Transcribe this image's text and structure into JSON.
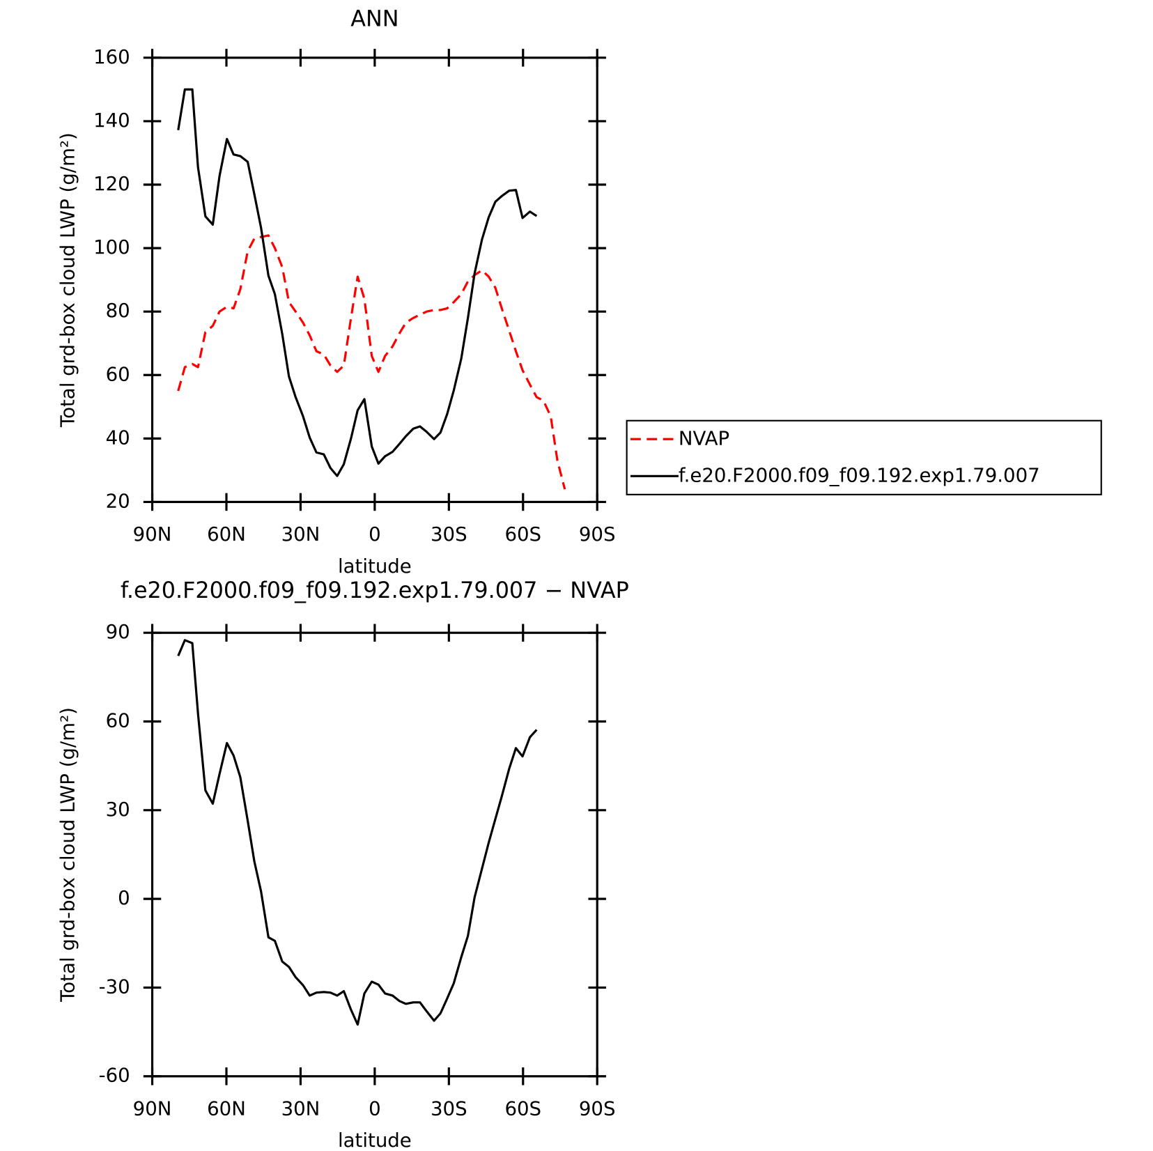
{
  "chart_data": [
    {
      "type": "line",
      "title": "ANN",
      "xlabel": "latitude",
      "ylabel": "Total grd-box cloud LWP (g/m²)",
      "x": [
        79.5,
        76.8,
        73.8,
        71.5,
        68.5,
        65.5,
        62.8,
        59.8,
        57.1,
        54.4,
        51.4,
        48.7,
        46,
        43,
        40.4,
        37.4,
        34.7,
        32,
        29,
        26.3,
        23.6,
        20.6,
        17.9,
        15.2,
        12.5,
        9.6,
        6.9,
        4.2,
        1.2,
        -1.5,
        -4.2,
        -7.2,
        -9.9,
        -12.6,
        -15.6,
        -18.3,
        -21,
        -24,
        -26.6,
        -29.3,
        -32,
        -35,
        -37.7,
        -40.4,
        -43.4,
        -46.1,
        -48.8,
        -51.4,
        -54.4,
        -57.1,
        -59.8,
        -62.8,
        -65.5,
        -68.2,
        -71.2,
        -73.9,
        -76.9
      ],
      "series": [
        {
          "name": "NVAP",
          "color": "#ff0000",
          "linestyle": "dashed",
          "values": [
            55,
            62.5,
            63.5,
            62.5,
            73.5,
            75.5,
            80,
            81.5,
            81,
            87,
            99,
            103,
            103.5,
            104,
            100,
            94,
            83,
            80,
            76.5,
            72.5,
            67.5,
            66.5,
            63,
            61,
            63,
            78,
            91,
            84,
            66,
            61,
            66,
            69,
            73,
            76.5,
            78,
            79,
            80,
            80.5,
            80.5,
            81,
            83,
            85.5,
            89.5,
            91.5,
            93,
            91,
            87.5,
            81,
            74,
            67.5,
            61.5,
            57,
            53,
            52,
            47,
            33,
            24
          ]
        },
        {
          "name": "f.e20.F2000.f09_f09.192.exp1.79.007",
          "color": "#000000",
          "linestyle": "solid",
          "values": [
            137.2,
            150,
            150,
            125.5,
            110,
            107.4,
            122.7,
            134.4,
            129.5,
            129,
            127.2,
            117,
            106.4,
            91.3,
            85.5,
            72.9,
            59.6,
            53,
            47,
            40.3,
            35.6,
            35,
            30.7,
            28.2,
            31.9,
            40,
            48.9,
            52.4,
            37.5,
            32.1,
            34.4,
            35.8,
            38.2,
            40.7,
            43.1,
            43.8,
            42.1,
            39.8,
            41.9,
            47.7,
            55.2,
            65.2,
            78,
            92,
            102.7,
            109.7,
            114.6,
            116.4,
            118.1,
            118.3,
            109.5,
            111.5,
            110.1,
            null,
            null,
            null,
            null
          ]
        }
      ],
      "xlim": [
        90,
        -90
      ],
      "xticks": [
        {
          "value": 90,
          "label": "90N"
        },
        {
          "value": 60,
          "label": "60N"
        },
        {
          "value": 30,
          "label": "30N"
        },
        0,
        {
          "value": -30,
          "label": "30S"
        },
        {
          "value": -60,
          "label": "60S"
        },
        {
          "value": -90,
          "label": "90S"
        }
      ],
      "ylim": [
        20,
        160
      ],
      "yticks": [
        20,
        40,
        60,
        80,
        100,
        120,
        140,
        160
      ],
      "legend": "right"
    },
    {
      "type": "line",
      "title": "f.e20.F2000.f09_f09.192.exp1.79.007 − NVAP",
      "xlabel": "latitude",
      "ylabel": "Total grd-box cloud LWP (g/m²)",
      "x": [
        79.5,
        76.8,
        73.8,
        71.5,
        68.5,
        65.5,
        62.8,
        59.8,
        57.1,
        54.4,
        51.4,
        48.7,
        46,
        43,
        40.4,
        37.4,
        34.7,
        32,
        29,
        26.3,
        23.6,
        20.6,
        17.9,
        15.2,
        12.5,
        9.6,
        6.9,
        4.2,
        1.2,
        -1.5,
        -4.2,
        -7.2,
        -9.9,
        -12.6,
        -15.6,
        -18.3,
        -21,
        -24,
        -26.6,
        -29.3,
        -32,
        -35,
        -37.7,
        -40.4,
        -43.4,
        -46.1,
        -48.8,
        -51.4,
        -54.4,
        -57.1,
        -59.8,
        -62.8,
        -65.5
      ],
      "series": [
        {
          "color": "#000000",
          "linestyle": "solid",
          "values": [
            82.2,
            87.5,
            86.5,
            62.7,
            36.7,
            32.2,
            42.2,
            52.7,
            48.5,
            41.2,
            26.5,
            12.7,
            2.5,
            -13,
            -14.2,
            -21.2,
            -23,
            -26.5,
            -29.2,
            -32.7,
            -31.7,
            -31.5,
            -31.7,
            -32.7,
            -31.2,
            -37.5,
            -42.5,
            -32,
            -28,
            -29,
            -32,
            -32.7,
            -34.5,
            -35.5,
            -35,
            -35,
            -38,
            -41.2,
            -38.7,
            -33.7,
            -28.5,
            -19.7,
            -12.5,
            0.5,
            10.2,
            19,
            27,
            34.7,
            44,
            51,
            48.2,
            54.7,
            57.2
          ]
        }
      ],
      "xlim": [
        90,
        -90
      ],
      "xticks": [
        {
          "value": 90,
          "label": "90N"
        },
        {
          "value": 60,
          "label": "60N"
        },
        {
          "value": 30,
          "label": "30N"
        },
        0,
        {
          "value": -30,
          "label": "30S"
        },
        {
          "value": -60,
          "label": "60S"
        },
        {
          "value": -90,
          "label": "90S"
        }
      ],
      "ylim": [
        -60,
        90
      ],
      "yticks": [
        -60,
        -30,
        0,
        30,
        60,
        90
      ]
    }
  ]
}
